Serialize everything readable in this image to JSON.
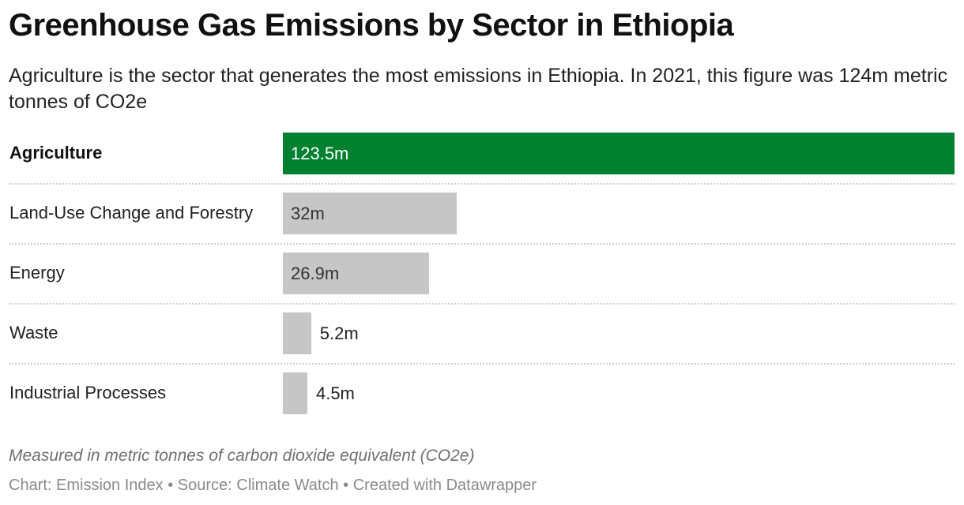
{
  "header": {
    "title": "Greenhouse Gas Emissions by Sector in Ethiopia",
    "subtitle": "Agriculture is the sector that generates the most emissions in Ethiopia. In 2021, this figure was 124m metric tonnes of CO2e"
  },
  "colors": {
    "highlight": "#00812F",
    "default_bar": "#C6C6C6",
    "highlight_text": "#FFFFFF",
    "default_text": "#333333"
  },
  "chart_data": {
    "type": "bar",
    "orientation": "horizontal",
    "categories": [
      "Agriculture",
      "Land-Use Change and Forestry",
      "Energy",
      "Waste",
      "Industrial Processes"
    ],
    "values": [
      123.5,
      32,
      26.9,
      5.2,
      4.5
    ],
    "value_labels": [
      "123.5m",
      "32m",
      "26.9m",
      "5.2m",
      "4.5m"
    ],
    "highlighted": [
      "Agriculture"
    ],
    "xlim": [
      0,
      123.5
    ],
    "grid": false,
    "legend": "none"
  },
  "notes": "Measured in metric tonnes of carbon dioxide equivalent (CO2e)",
  "footer": {
    "chart_label": "Chart:",
    "chart_by": "Emission Index",
    "source_label": "Source:",
    "source": "Climate Watch",
    "created_with": "Created with Datawrapper",
    "separator": "•"
  }
}
